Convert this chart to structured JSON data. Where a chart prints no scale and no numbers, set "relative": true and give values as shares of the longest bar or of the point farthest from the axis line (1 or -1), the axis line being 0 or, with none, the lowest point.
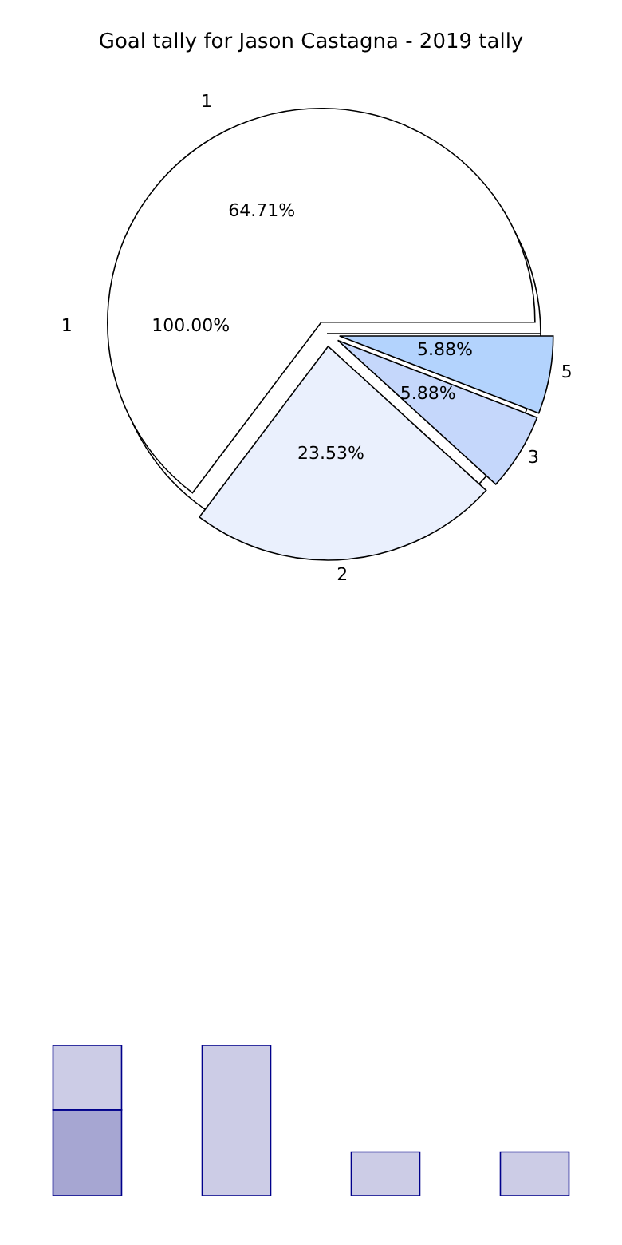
{
  "chart_data": [
    {
      "type": "pie",
      "title": "Goal tally for Jason Castagna - 2019 tally",
      "categories": [
        "1",
        "2",
        "3",
        "5"
      ],
      "values": [
        64.71,
        23.53,
        5.88,
        5.88
      ],
      "colors": [
        "#ffffff",
        "#eaf0fd",
        "#c5d7fb",
        "#b3d3fd"
      ],
      "value_labels": [
        "64.71%",
        "23.53%",
        "5.88%",
        "5.88%"
      ]
    },
    {
      "type": "pie",
      "categories": [
        "1"
      ],
      "values": [
        100
      ],
      "colors": [
        "#ffffff"
      ],
      "value_labels": [
        "100.00%"
      ]
    },
    {
      "type": "bar",
      "stacked": true,
      "relative": true,
      "categories": [
        null,
        null,
        null,
        null
      ],
      "series": [
        {
          "color": "#a6a6d2",
          "values": [
            0.57,
            0,
            0,
            0
          ]
        },
        {
          "color": "#cccce6",
          "values": [
            0.43,
            1,
            0.29,
            0.29
          ]
        }
      ]
    }
  ]
}
